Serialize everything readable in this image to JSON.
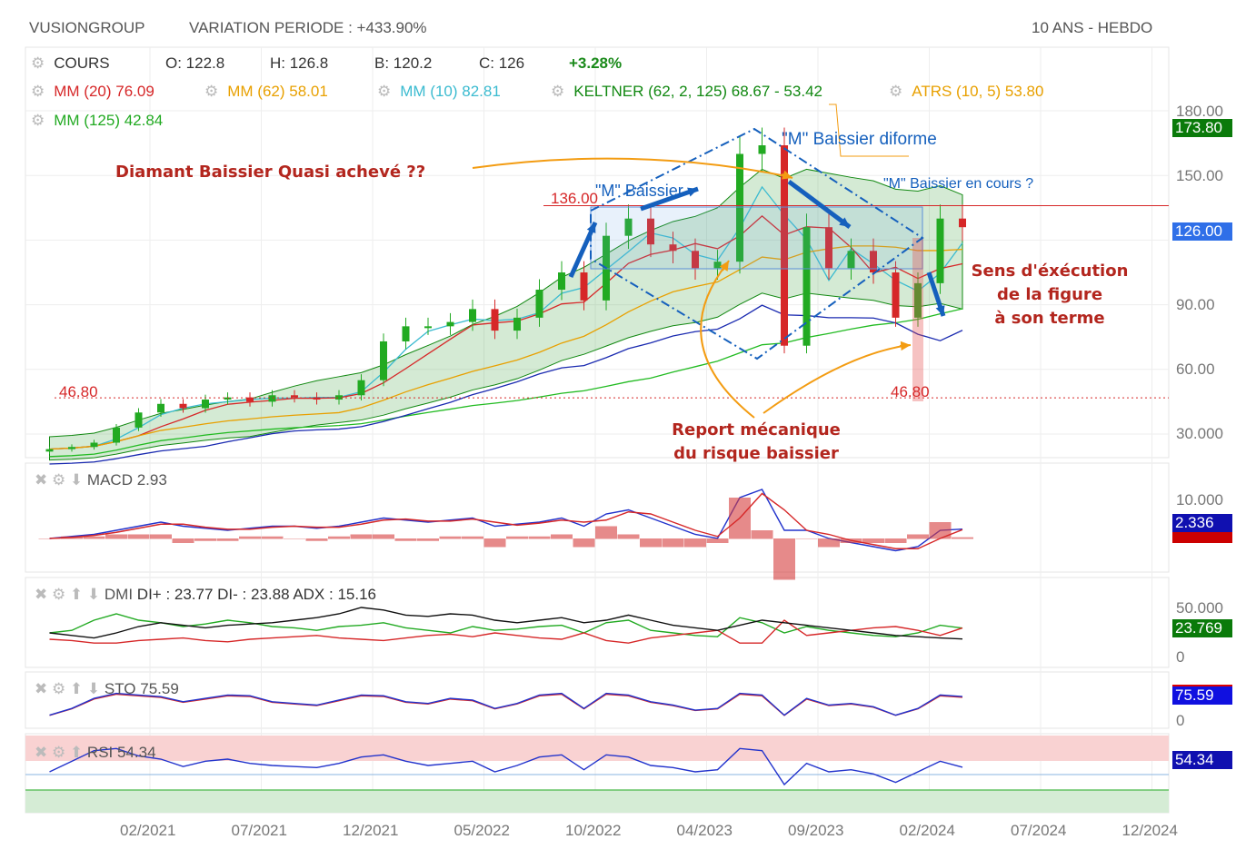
{
  "header": {
    "symbol": "VUSIONGROUP",
    "variation": "VARIATION PERIODE : +433.90%",
    "period": "10 ANS - HEBDO"
  },
  "legend": {
    "cours": "COURS",
    "open": "O: 122.8",
    "high": "H: 126.8",
    "low": "B: 120.2",
    "close": "C: 126",
    "change": "+3.28%",
    "mm20": "MM (20) 76.09",
    "mm62": "MM (62) 58.01",
    "mm10": "MM (10) 82.81",
    "keltner": "KELTNER (62, 2, 125) 68.67 - 53.42",
    "atrs": "ATRS (10, 5) 53.80",
    "mm125": "MM (125) 42.84"
  },
  "annotations": {
    "diamant": "Diamant Baissier Quasi achevé ??",
    "m1": "\"M\" Baissier",
    "m2": "\"M\" Baissier diforme",
    "m3": "\"M\" Baissier en cours ?",
    "sens": [
      "Sens d'éxécution",
      "de la figure",
      "à son terme"
    ],
    "report": [
      "Report mécanique",
      "du risque baissier"
    ],
    "lvl136": "136.00",
    "lvl46a": "46.80",
    "lvl46b": "46.80"
  },
  "price_axis": {
    "ticks": [
      "180.00",
      "150.00",
      "126.00",
      "90.00",
      "60.00",
      "30.000"
    ],
    "high_tag": "173.80",
    "last_tag": "126.00"
  },
  "panels": {
    "macd": {
      "label": "MACD",
      "value": "2.93",
      "tick": "10.000",
      "tag": "2.336"
    },
    "dmi": {
      "label": "DMI",
      "value": "DI+ : 23.77 DI- : 23.88 ADX : 15.16",
      "tick_top": "50.000",
      "tick_zero": "0",
      "tag": "23.769"
    },
    "sto": {
      "label": "STO",
      "value": "75.59",
      "tick_zero": "0",
      "tag": "75.59"
    },
    "rsi": {
      "label": "RSI",
      "value": "54.34",
      "tag": "54.34"
    }
  },
  "colors": {
    "up": "#22aa22",
    "down": "#d62728",
    "mm20": "#d62728",
    "mm62": "#e8a000",
    "mm10": "#3bbbd0",
    "keltner": "#118811",
    "ann": "#b3261e",
    "arrow": "#1560bd"
  },
  "chart_data": {
    "type": "candlestick",
    "title": "VUSIONGROUP 10 ANS - HEBDO",
    "ylim": [
      30,
      180
    ],
    "x_ticks": [
      "02/2021",
      "07/2021",
      "12/2021",
      "05/2022",
      "10/2022",
      "04/2023",
      "09/2023",
      "02/2024",
      "07/2024",
      "12/2024"
    ],
    "months_from_feb2021_start": -5,
    "closes": [
      23,
      24,
      26,
      33,
      40,
      44,
      42,
      46,
      47,
      45,
      48,
      47,
      46,
      48,
      55,
      73,
      80,
      80,
      82,
      88,
      78,
      84,
      97,
      105,
      92,
      122,
      130,
      118,
      115,
      107,
      110,
      160,
      164,
      71,
      126,
      107,
      115,
      105,
      84,
      100,
      130,
      126
    ],
    "levels": [
      136,
      46.8
    ],
    "macd": [
      0,
      0.5,
      1,
      2,
      3,
      4,
      3,
      2.5,
      2,
      2.5,
      3,
      3,
      2.5,
      3,
      4,
      5,
      4.5,
      4,
      4.5,
      5,
      3,
      3.5,
      4,
      5,
      3,
      6,
      7,
      5,
      3,
      1,
      0,
      10,
      12,
      2,
      2,
      0,
      -1,
      -2,
      -3,
      -2,
      2,
      2.3
    ],
    "dmi_plus": [
      20,
      22,
      30,
      35,
      30,
      28,
      25,
      27,
      30,
      28,
      25,
      24,
      22,
      25,
      26,
      28,
      24,
      22,
      20,
      25,
      22,
      23,
      25,
      26,
      20,
      28,
      30,
      22,
      20,
      18,
      17,
      32,
      28,
      20,
      25,
      22,
      20,
      18,
      17,
      20,
      26,
      23.8
    ],
    "dmi_minus": [
      15,
      14,
      12,
      12,
      14,
      15,
      16,
      14,
      13,
      15,
      16,
      17,
      18,
      16,
      15,
      14,
      16,
      18,
      19,
      17,
      20,
      18,
      16,
      15,
      20,
      14,
      12,
      16,
      18,
      20,
      22,
      12,
      12,
      30,
      18,
      20,
      22,
      24,
      25,
      22,
      18,
      23.9
    ],
    "adx": [
      20,
      18,
      16,
      20,
      25,
      28,
      26,
      24,
      26,
      27,
      28,
      30,
      32,
      35,
      40,
      38,
      34,
      33,
      35,
      34,
      30,
      28,
      30,
      32,
      28,
      30,
      34,
      30,
      26,
      24,
      22,
      26,
      30,
      28,
      26,
      24,
      22,
      20,
      18,
      17,
      16,
      15.2
    ],
    "sto": [
      20,
      40,
      70,
      85,
      80,
      75,
      60,
      70,
      80,
      78,
      60,
      55,
      50,
      65,
      80,
      78,
      60,
      55,
      70,
      65,
      40,
      55,
      80,
      85,
      40,
      85,
      80,
      60,
      50,
      35,
      40,
      85,
      80,
      20,
      70,
      50,
      55,
      45,
      20,
      40,
      80,
      75.6
    ],
    "rsi": [
      50,
      60,
      70,
      72,
      65,
      62,
      55,
      60,
      62,
      58,
      56,
      55,
      54,
      58,
      64,
      66,
      60,
      56,
      58,
      60,
      50,
      56,
      64,
      66,
      52,
      66,
      64,
      56,
      54,
      50,
      52,
      72,
      70,
      38,
      58,
      50,
      52,
      48,
      40,
      50,
      60,
      54.3
    ]
  }
}
